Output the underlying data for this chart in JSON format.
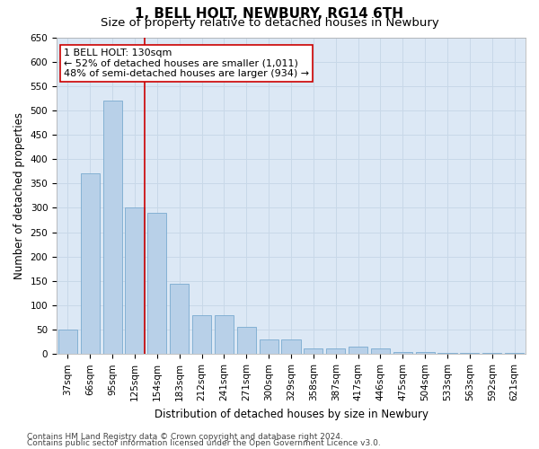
{
  "title": "1, BELL HOLT, NEWBURY, RG14 6TH",
  "subtitle": "Size of property relative to detached houses in Newbury",
  "xlabel": "Distribution of detached houses by size in Newbury",
  "ylabel": "Number of detached properties",
  "categories": [
    "37sqm",
    "66sqm",
    "95sqm",
    "125sqm",
    "154sqm",
    "183sqm",
    "212sqm",
    "241sqm",
    "271sqm",
    "300sqm",
    "329sqm",
    "358sqm",
    "387sqm",
    "417sqm",
    "446sqm",
    "475sqm",
    "504sqm",
    "533sqm",
    "563sqm",
    "592sqm",
    "621sqm"
  ],
  "values": [
    50,
    370,
    520,
    300,
    290,
    145,
    80,
    80,
    55,
    30,
    30,
    12,
    12,
    15,
    12,
    5,
    5,
    2,
    2,
    2,
    2
  ],
  "bar_color": "#b8d0e8",
  "bar_edge_color": "#7aaad0",
  "highlight_index": 3,
  "red_line_color": "#cc0000",
  "annotation_box_color": "#cc0000",
  "annotation_line1": "1 BELL HOLT: 130sqm",
  "annotation_line2": "← 52% of detached houses are smaller (1,011)",
  "annotation_line3": "48% of semi-detached houses are larger (934) →",
  "ylim": [
    0,
    650
  ],
  "yticks": [
    0,
    50,
    100,
    150,
    200,
    250,
    300,
    350,
    400,
    450,
    500,
    550,
    600,
    650
  ],
  "grid_color": "#c8d8e8",
  "plot_bg_color": "#dce8f5",
  "footer_line1": "Contains HM Land Registry data © Crown copyright and database right 2024.",
  "footer_line2": "Contains public sector information licensed under the Open Government Licence v3.0.",
  "title_fontsize": 11,
  "subtitle_fontsize": 9.5,
  "annotation_fontsize": 8,
  "axis_label_fontsize": 8.5,
  "tick_fontsize": 7.5,
  "footer_fontsize": 6.5
}
